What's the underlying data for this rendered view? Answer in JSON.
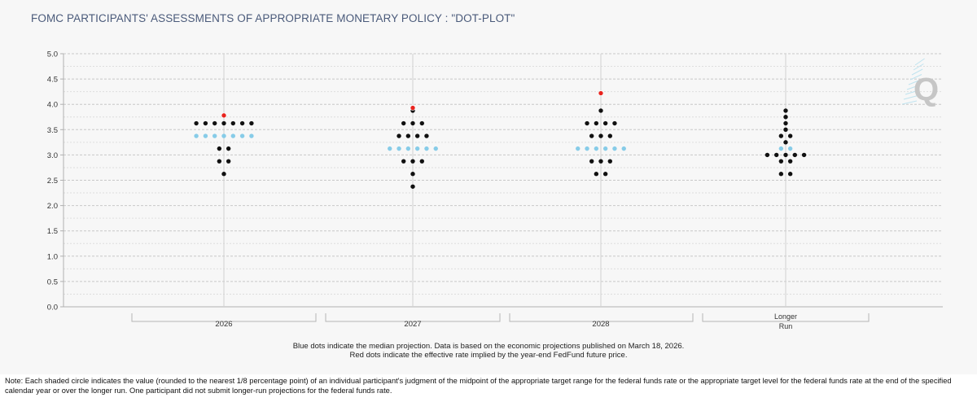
{
  "title": "FOMC PARTICIPANTS' ASSESSMENTS OF APPROPRIATE MONETARY POLICY : \"DOT-PLOT\"",
  "caption": {
    "line1": "Blue dots indicate the median projection. Data is based on the economic projections published on March 18, 2026.",
    "line2": "Red dots indicate the effective rate implied by the year-end FedFund future price."
  },
  "note": "Note: Each shaded circle indicates the value (rounded to the nearest 1/8 percentage point) of an individual participant's judgment of the midpoint of the appropriate target range for the federal funds rate or the appropriate target level for the federal funds rate at the end of the specified calendar year or over the longer run. One participant did not submit longer-run projections for the federal funds rate.",
  "logo": {
    "text": "Q"
  },
  "colors": {
    "participant": "#111111",
    "median": "#87cce8",
    "market": "#e8231e",
    "grid": "#cfcfcf",
    "axis": "#b0b0b0",
    "title": "#4a5a7a"
  },
  "chart_data": {
    "type": "scatter",
    "title": "FOMC PARTICIPANTS' ASSESSMENTS OF APPROPRIATE MONETARY POLICY : \"DOT-PLOT\"",
    "ylim": [
      0,
      5
    ],
    "yticks": [
      "0.0",
      "0.5",
      "1.0",
      "1.5",
      "2.0",
      "2.5",
      "3.0",
      "3.5",
      "4.0",
      "4.5",
      "5.0"
    ],
    "grid": true,
    "categories": [
      {
        "label": "2026",
        "dots": [
          {
            "rate": 3.625,
            "count": 7
          },
          {
            "rate": 3.125,
            "count": 2
          },
          {
            "rate": 2.875,
            "count": 2
          },
          {
            "rate": 2.625,
            "count": 1
          }
        ],
        "median": {
          "rate": 3.375,
          "count": 7
        },
        "market": 3.78
      },
      {
        "label": "2027",
        "dots": [
          {
            "rate": 3.875,
            "count": 1
          },
          {
            "rate": 3.625,
            "count": 3
          },
          {
            "rate": 3.375,
            "count": 4
          },
          {
            "rate": 2.875,
            "count": 3
          },
          {
            "rate": 2.625,
            "count": 1
          },
          {
            "rate": 2.375,
            "count": 1
          }
        ],
        "median": {
          "rate": 3.125,
          "count": 6
        },
        "market": 3.93
      },
      {
        "label": "2028",
        "dots": [
          {
            "rate": 3.875,
            "count": 1
          },
          {
            "rate": 3.625,
            "count": 4
          },
          {
            "rate": 3.375,
            "count": 3
          },
          {
            "rate": 2.875,
            "count": 3
          },
          {
            "rate": 2.625,
            "count": 2
          }
        ],
        "median": {
          "rate": 3.125,
          "count": 6
        },
        "market": 4.22
      },
      {
        "label": "Longer",
        "label2": "Run",
        "dots": [
          {
            "rate": 3.875,
            "count": 1
          },
          {
            "rate": 3.75,
            "count": 1
          },
          {
            "rate": 3.625,
            "count": 1
          },
          {
            "rate": 3.5,
            "count": 1
          },
          {
            "rate": 3.375,
            "count": 2
          },
          {
            "rate": 3.25,
            "count": 1
          },
          {
            "rate": 3.0,
            "count": 5
          },
          {
            "rate": 2.875,
            "count": 2
          },
          {
            "rate": 2.625,
            "count": 2
          }
        ],
        "median": {
          "rate": 3.125,
          "count": 2
        },
        "market": null
      }
    ],
    "legend": {
      "median": "Blue dots indicate the median projection.",
      "market": "Red dots indicate the effective rate implied by the year-end FedFund future price."
    }
  }
}
